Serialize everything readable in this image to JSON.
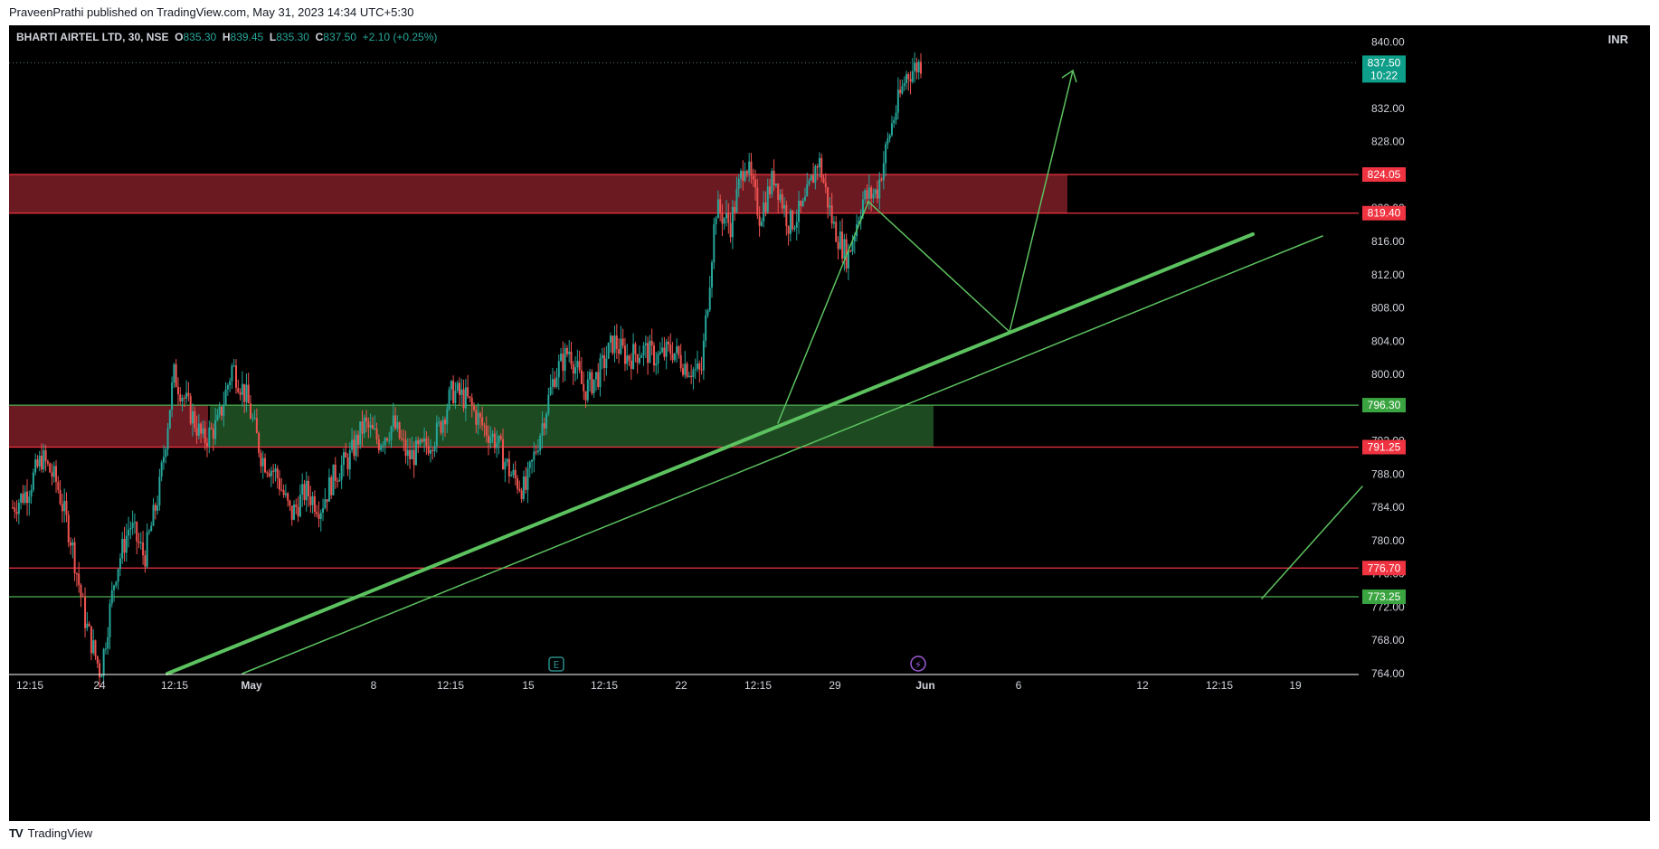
{
  "header": {
    "published_text": "PraveenPrathi published on TradingView.com, May 31, 2023 14:34 UTC+5:30"
  },
  "legend": {
    "symbol": "BHARTI AIRTEL LTD, 30, NSE",
    "open_label": "O",
    "open": "835.30",
    "high_label": "H",
    "high": "839.45",
    "low_label": "L",
    "low": "835.30",
    "close_label": "C",
    "close": "837.50",
    "change": "+2.10 (+0.25%)"
  },
  "currency": "INR",
  "footer": {
    "logo_text": "TradingView"
  },
  "colors": {
    "background": "#000000",
    "up": "#26a69a",
    "down": "#ef5350",
    "supply_zone": "#6b1a22",
    "demand_zone": "#1e4a22",
    "red_line": "#ef3340",
    "green_line": "#4caf50",
    "trend": "#5cc25f"
  },
  "chart_data": {
    "type": "candlestick",
    "y_axis": {
      "range": [
        764,
        842
      ],
      "ticks": [
        "764.00",
        "768.00",
        "772.00",
        "776.00",
        "780.00",
        "784.00",
        "788.00",
        "792.00",
        "796.00",
        "800.00",
        "804.00",
        "808.00",
        "812.00",
        "816.00",
        "820.00",
        "824.00",
        "828.00",
        "832.00",
        "836.00",
        "840.00"
      ]
    },
    "x_axis": {
      "ticks": [
        "12:15",
        "24",
        "12:15",
        "May",
        "8",
        "12:15",
        "15",
        "12:15",
        "22",
        "12:15",
        "29",
        "Jun",
        "6",
        "12",
        "12:15",
        "19"
      ],
      "bold": [
        "May",
        "Jun"
      ]
    },
    "horizontal_levels": [
      {
        "value": 824.05,
        "label": "824.05",
        "color": "red"
      },
      {
        "value": 819.4,
        "label": "819.40",
        "color": "red"
      },
      {
        "value": 796.3,
        "label": "796.30",
        "color": "green"
      },
      {
        "value": 791.25,
        "label": "791.25",
        "color": "red"
      },
      {
        "value": 776.7,
        "label": "776.70",
        "color": "red"
      },
      {
        "value": 773.25,
        "label": "773.25",
        "color": "green"
      }
    ],
    "last_price": {
      "value": 837.5,
      "label": "837.50",
      "countdown": "10:22"
    },
    "zones": [
      {
        "type": "supply",
        "top": 824.05,
        "bottom": 819.4
      },
      {
        "type": "supply",
        "top": 796.3,
        "bottom": 791.25
      },
      {
        "type": "demand",
        "top": 796.3,
        "bottom": 791.25
      }
    ],
    "event_markers": [
      {
        "type": "earnings",
        "glyph": "E"
      },
      {
        "type": "dividend",
        "glyph": "⚡"
      }
    ],
    "price_path": [
      784,
      786,
      790,
      787,
      780,
      770,
      764,
      776,
      782,
      778,
      786,
      800,
      796,
      792,
      794,
      801,
      797,
      790,
      788,
      783,
      786,
      784,
      788,
      790,
      794,
      792,
      794,
      790,
      791,
      793,
      798,
      797,
      794,
      792,
      788,
      786,
      793,
      800,
      803,
      798,
      800,
      804,
      802,
      803,
      802,
      803,
      801,
      800,
      820,
      818,
      826,
      819,
      824,
      818,
      820,
      826,
      818,
      814,
      821,
      822,
      830,
      836,
      837.5
    ]
  }
}
